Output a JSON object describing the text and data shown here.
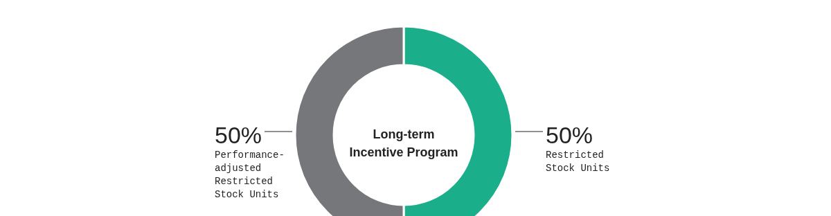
{
  "chart_data": {
    "type": "donut",
    "categories": [
      "Restricted Stock Units",
      "Performance-adjusted Restricted Stock Units"
    ],
    "values": [
      50,
      50
    ],
    "colors": [
      "#1aae8a",
      "#76777a"
    ],
    "value_labels": [
      "50%",
      "50%"
    ],
    "annotations": [
      "Long-term Incentive Program"
    ]
  }
}
